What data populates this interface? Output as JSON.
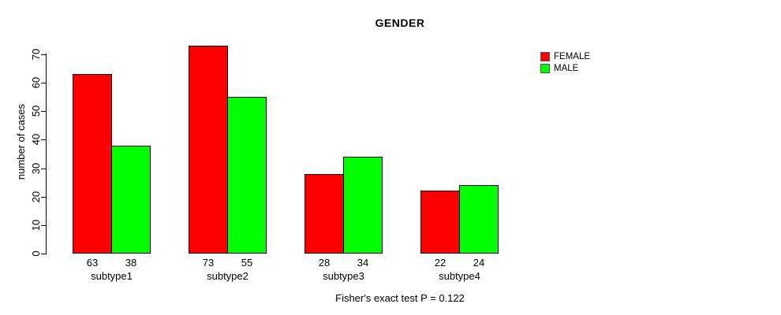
{
  "chart_data": {
    "type": "bar",
    "title": "GENDER",
    "xlabel": "",
    "ylabel": "number of cases",
    "categories": [
      "subtype1",
      "subtype2",
      "subtype3",
      "subtype4"
    ],
    "series": [
      {
        "name": "FEMALE",
        "color": "#ff0000",
        "values": [
          63,
          73,
          28,
          22
        ]
      },
      {
        "name": "MALE",
        "color": "#00ff00",
        "values": [
          38,
          55,
          34,
          24
        ]
      }
    ],
    "yticks": [
      0,
      10,
      20,
      30,
      40,
      50,
      60,
      70
    ],
    "ylim": [
      0,
      70
    ],
    "grid": false,
    "bar_border_color": "#000000",
    "value_labels": true,
    "legend_position": "right",
    "annotation": "Fisher's exact test P = 0.122"
  }
}
